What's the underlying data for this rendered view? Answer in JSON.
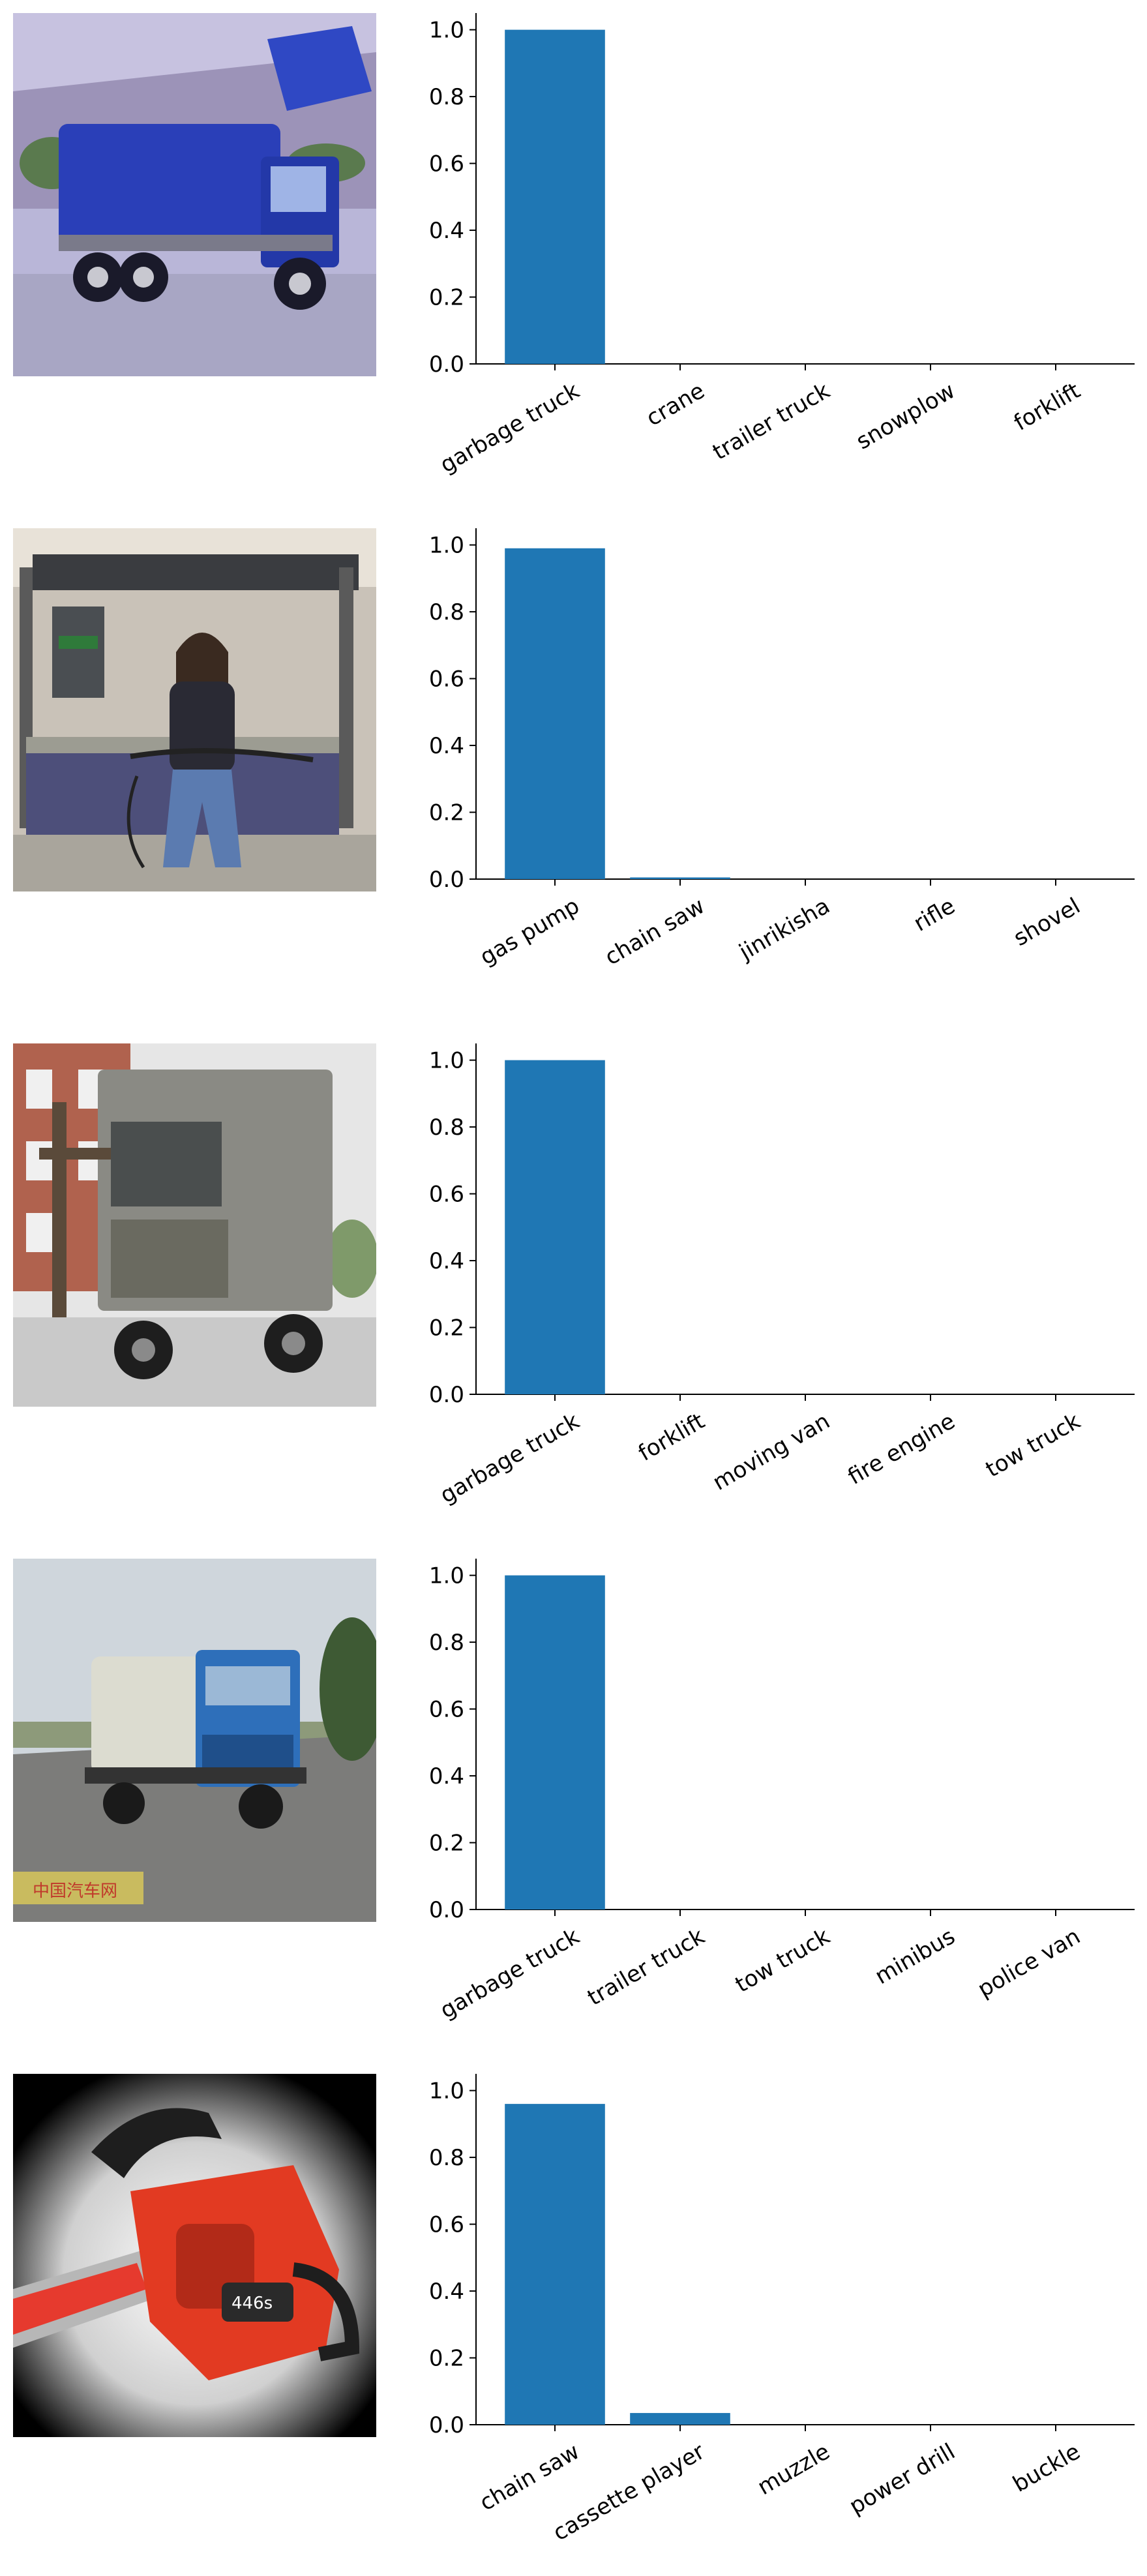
{
  "colors": {
    "bar": "#1f77b4",
    "axis": "#000000",
    "background": "#ffffff"
  },
  "panels": [
    {
      "image": "garbage-truck-photo",
      "yticks": [
        "0.0",
        "0.2",
        "0.4",
        "0.6",
        "0.8",
        "1.0"
      ]
    },
    {
      "image": "gas-pump-person-photo",
      "yticks": [
        "0.0",
        "0.2",
        "0.4",
        "0.6",
        "0.8",
        "1.0"
      ]
    },
    {
      "image": "garbage-truck-photo",
      "yticks": [
        "0.0",
        "0.2",
        "0.4",
        "0.6",
        "0.8",
        "1.0"
      ]
    },
    {
      "image": "garbage-truck-photo",
      "watermark": "中国汽车网",
      "yticks": [
        "0.0",
        "0.2",
        "0.4",
        "0.6",
        "0.8",
        "1.0"
      ]
    },
    {
      "image": "chain-saw-photo",
      "brand_text": "446s",
      "yticks": [
        "0.0",
        "0.2",
        "0.4",
        "0.6",
        "0.8",
        "1.0"
      ]
    }
  ],
  "chart_data": [
    {
      "type": "bar",
      "categories": [
        "garbage truck",
        "crane",
        "trailer truck",
        "snowplow",
        "forklift"
      ],
      "values": [
        1.0,
        0.0,
        0.0,
        0.0,
        0.0
      ],
      "ylim": [
        0,
        1.05
      ],
      "grid": false,
      "legend": "none"
    },
    {
      "type": "bar",
      "categories": [
        "gas pump",
        "chain saw",
        "jinrikisha",
        "rifle",
        "shovel"
      ],
      "values": [
        0.99,
        0.005,
        0.0,
        0.0,
        0.0
      ],
      "ylim": [
        0,
        1.05
      ],
      "grid": false,
      "legend": "none"
    },
    {
      "type": "bar",
      "categories": [
        "garbage truck",
        "forklift",
        "moving van",
        "fire engine",
        "tow truck"
      ],
      "values": [
        1.0,
        0.0,
        0.0,
        0.0,
        0.0
      ],
      "ylim": [
        0,
        1.05
      ],
      "grid": false,
      "legend": "none"
    },
    {
      "type": "bar",
      "categories": [
        "garbage truck",
        "trailer truck",
        "tow truck",
        "minibus",
        "police van"
      ],
      "values": [
        1.0,
        0.0,
        0.0,
        0.0,
        0.0
      ],
      "ylim": [
        0,
        1.05
      ],
      "grid": false,
      "legend": "none"
    },
    {
      "type": "bar",
      "categories": [
        "chain saw",
        "cassette player",
        "muzzle",
        "power drill",
        "buckle"
      ],
      "values": [
        0.96,
        0.035,
        0.0,
        0.0,
        0.0
      ],
      "ylim": [
        0,
        1.05
      ],
      "grid": false,
      "legend": "none"
    }
  ]
}
